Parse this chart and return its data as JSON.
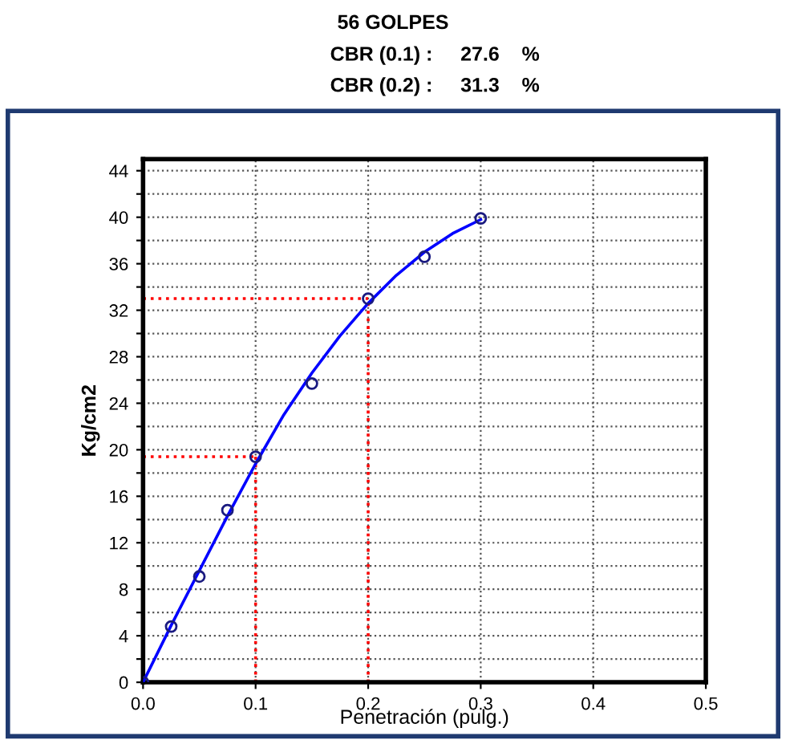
{
  "chart_data": {
    "type": "scatter",
    "title": "56 GOLPES",
    "annotations": [
      "CBR (0.1) :     27.6    %",
      "CBR (0.2) :     31.3    %"
    ],
    "xlabel": "Penetración (pulg.)",
    "ylabel": "Kg/cm2",
    "x": [
      0,
      0.025,
      0.05,
      0.075,
      0.1,
      0.15,
      0.2,
      0.25,
      0.3
    ],
    "series": [
      {
        "color": "#1a1a80",
        "marker": "circle",
        "values": [
          0,
          4.8,
          9.1,
          14.8,
          19.4,
          25.7,
          33.0,
          36.6,
          39.9
        ]
      },
      {
        "type": "line",
        "color": "#0000ff",
        "marker": "none",
        "x": [
          0,
          0.025,
          0.05,
          0.075,
          0.1,
          0.125,
          0.15,
          0.175,
          0.2,
          0.225,
          0.25,
          0.275,
          0.3
        ],
        "values": [
          0,
          4.9,
          9.6,
          14.3,
          18.8,
          23.0,
          26.6,
          29.8,
          32.6,
          35.0,
          37.0,
          38.6,
          39.8
        ]
      }
    ],
    "ref_lines": [
      {
        "axis": "x",
        "value": 0.1,
        "color": "#ff0000",
        "line_style": "dotted"
      },
      {
        "axis": "x",
        "value": 0.2,
        "color": "#ff0000",
        "line_style": "dotted"
      },
      {
        "axis": "y",
        "value": 19.4,
        "color": "#ff0000",
        "line_style": "dotted"
      },
      {
        "axis": "y",
        "value": 33.0,
        "color": "#ff0000",
        "line_style": "dotted"
      }
    ],
    "xlim": [
      0,
      0.5
    ],
    "xticks": [
      {
        "value": 0,
        "label": "0.0"
      },
      0.1,
      0.2,
      0.3,
      0.4,
      0.5
    ],
    "ylim": [
      0,
      45
    ],
    "yticks": [
      0,
      {
        "value": 2,
        "label": null
      },
      4,
      {
        "value": 6,
        "label": null
      },
      8,
      {
        "value": 10,
        "label": null
      },
      12,
      {
        "value": 14,
        "label": null
      },
      16,
      {
        "value": 18,
        "label": null
      },
      20,
      {
        "value": 22,
        "label": null
      },
      24,
      {
        "value": 26,
        "label": null
      },
      28,
      {
        "value": 30,
        "label": null
      },
      32,
      {
        "value": 34,
        "label": null
      },
      36,
      {
        "value": 38,
        "label": null
      },
      40,
      {
        "value": 42,
        "label": null
      },
      44
    ],
    "grid": true
  }
}
